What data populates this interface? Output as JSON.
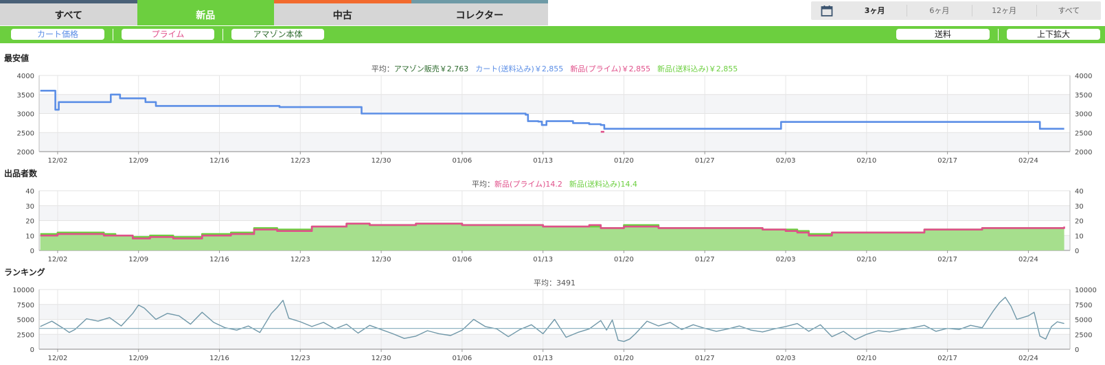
{
  "tabs": [
    {
      "label": "すべて",
      "active": false
    },
    {
      "label": "新品",
      "active": true
    },
    {
      "label": "中古",
      "active": false
    },
    {
      "label": "コレクター",
      "active": false
    }
  ],
  "range": {
    "icon": "calendar-icon",
    "options": [
      "3ヶ月",
      "6ヶ月",
      "12ヶ月",
      "すべて"
    ],
    "selected": "3ヶ月"
  },
  "filters": {
    "cart": "カート価格",
    "prime": "プライム",
    "amazon": "アマゾン本体",
    "shipping": "送料",
    "zoom": "上下拡大"
  },
  "colors": {
    "green": "#6ccf3f",
    "cart": "#5b8ee6",
    "prime": "#e0508a",
    "amazon": "#2e6b2e",
    "newship": "#6ccf3f",
    "rank": "#6f97a8"
  },
  "chart_data": [
    {
      "type": "line",
      "title": "最安値",
      "avg_label": "平均：",
      "legend": [
        {
          "text": "アマゾン販売￥2,763",
          "color": "#2e6b2e"
        },
        {
          "text": "カート(送料込み)￥2,855",
          "color": "#5b8ee6"
        },
        {
          "text": "新品(プライム)￥2,855",
          "color": "#e0508a"
        },
        {
          "text": "新品(送料込み)￥2,855",
          "color": "#6ccf3f"
        }
      ],
      "x_ticks": [
        "12/02",
        "12/09",
        "12/16",
        "12/23",
        "12/30",
        "01/06",
        "01/13",
        "01/20",
        "01/27",
        "02/03",
        "02/10",
        "02/17",
        "02/24"
      ],
      "xlim": [
        -1.6,
        87.6
      ],
      "ylim": [
        2000,
        4000
      ],
      "y_ticks": [
        "2000",
        "2500",
        "3000",
        "3500",
        "4000"
      ],
      "series": [
        {
          "name": "カート(送料込み)",
          "color": "#5b8ee6",
          "points": [
            [
              -1.5,
              3600
            ],
            [
              -0.3,
              3600
            ],
            [
              -0.2,
              3100
            ],
            [
              0.1,
              3300
            ],
            [
              4.5,
              3300
            ],
            [
              4.6,
              3500
            ],
            [
              5.3,
              3500
            ],
            [
              5.4,
              3400
            ],
            [
              7.5,
              3400
            ],
            [
              7.6,
              3300
            ],
            [
              8.3,
              3300
            ],
            [
              8.5,
              3200
            ],
            [
              19.2,
              3170
            ],
            [
              26.2,
              3170
            ],
            [
              26.3,
              3000
            ],
            [
              33.5,
              3000
            ],
            [
              40.5,
              2970
            ],
            [
              40.7,
              2800
            ],
            [
              41.6,
              2790
            ],
            [
              41.9,
              2700
            ],
            [
              42.3,
              2800
            ],
            [
              44.4,
              2800
            ],
            [
              44.6,
              2750
            ],
            [
              46.0,
              2720
            ],
            [
              47.0,
              2700
            ],
            [
              47.3,
              2600
            ],
            [
              62.5,
              2600
            ],
            [
              62.6,
              2780
            ],
            [
              84.9,
              2780
            ],
            [
              85.0,
              2600
            ],
            [
              87.1,
              2600
            ]
          ]
        },
        {
          "name": "新品(プライム)",
          "color": "#e0508a",
          "points": [
            [
              47.0,
              2520
            ],
            [
              47.3,
              2520
            ]
          ]
        }
      ]
    },
    {
      "type": "area",
      "title": "出品者数",
      "avg_label": "平均：",
      "legend": [
        {
          "text": "新品(プライム)14.2",
          "color": "#e0508a"
        },
        {
          "text": "新品(送料込み)14.4",
          "color": "#6ccf3f"
        }
      ],
      "x_ticks": [
        "12/02",
        "12/09",
        "12/16",
        "12/23",
        "12/30",
        "01/06",
        "01/13",
        "01/20",
        "01/27",
        "02/03",
        "02/10",
        "02/17",
        "02/24"
      ],
      "xlim": [
        -1.6,
        87.6
      ],
      "ylim": [
        0,
        40
      ],
      "y_ticks": [
        "0",
        "10",
        "20",
        "30",
        "40"
      ],
      "series": [
        {
          "name": "新品(送料込み)",
          "color": "#6ccf3f",
          "points": [
            [
              -1.5,
              11
            ],
            [
              0,
              12
            ],
            [
              3,
              12
            ],
            [
              4,
              11
            ],
            [
              5,
              10
            ],
            [
              6.5,
              9
            ],
            [
              8,
              10
            ],
            [
              10,
              9
            ],
            [
              12.5,
              11
            ],
            [
              15,
              12
            ],
            [
              17,
              15
            ],
            [
              19,
              14
            ],
            [
              22,
              16
            ],
            [
              25,
              18
            ],
            [
              27,
              17
            ],
            [
              30,
              17
            ],
            [
              31,
              18
            ],
            [
              35,
              17
            ],
            [
              38,
              17
            ],
            [
              41,
              17
            ],
            [
              42,
              16
            ],
            [
              45,
              16
            ],
            [
              47,
              15
            ],
            [
              49,
              17
            ],
            [
              52,
              15
            ],
            [
              59,
              15
            ],
            [
              61,
              14
            ],
            [
              63,
              14
            ],
            [
              64,
              13
            ],
            [
              65,
              11
            ],
            [
              67,
              12
            ],
            [
              73,
              12
            ],
            [
              75,
              14
            ],
            [
              80,
              15
            ],
            [
              87.1,
              15
            ]
          ]
        },
        {
          "name": "新品(プライム)",
          "color": "#e0508a",
          "points": [
            [
              -1.5,
              10
            ],
            [
              0,
              11
            ],
            [
              3,
              11
            ],
            [
              4,
              10
            ],
            [
              5,
              10
            ],
            [
              6.5,
              8
            ],
            [
              8,
              9
            ],
            [
              10,
              8
            ],
            [
              12.5,
              10
            ],
            [
              15,
              11
            ],
            [
              17,
              14
            ],
            [
              19,
              13
            ],
            [
              22,
              16
            ],
            [
              25,
              18
            ],
            [
              27,
              17
            ],
            [
              30,
              17
            ],
            [
              31,
              18
            ],
            [
              35,
              17
            ],
            [
              38,
              17
            ],
            [
              41,
              17
            ],
            [
              42,
              16
            ],
            [
              45,
              16
            ],
            [
              46,
              17
            ],
            [
              47,
              15
            ],
            [
              49,
              16
            ],
            [
              52,
              15
            ],
            [
              59,
              15
            ],
            [
              61,
              14
            ],
            [
              63,
              13
            ],
            [
              64,
              12
            ],
            [
              65,
              10
            ],
            [
              67,
              12
            ],
            [
              73,
              12
            ],
            [
              75,
              14
            ],
            [
              80,
              15
            ],
            [
              87.1,
              16
            ]
          ]
        }
      ]
    },
    {
      "type": "line",
      "title": "ランキング",
      "avg_label": "平均：",
      "legend": [
        {
          "text": "3491",
          "color": "#555"
        }
      ],
      "x_ticks": [
        "12/02",
        "12/09",
        "12/16",
        "12/23",
        "12/30",
        "01/06",
        "01/13",
        "01/20",
        "01/27",
        "02/03",
        "02/10",
        "02/17",
        "02/24"
      ],
      "xlim": [
        -1.6,
        87.6
      ],
      "ylim": [
        0,
        10000
      ],
      "y_ticks": [
        "0",
        "2500",
        "5000",
        "7500",
        "10000"
      ],
      "average": 3491,
      "series": [
        {
          "name": "ランキング",
          "color": "#6f97a8",
          "points": [
            [
              -1.5,
              3800
            ],
            [
              -0.5,
              4700
            ],
            [
              0.5,
              3500
            ],
            [
              1,
              2800
            ],
            [
              1.5,
              3300
            ],
            [
              2.5,
              5100
            ],
            [
              3.5,
              4700
            ],
            [
              4.5,
              5300
            ],
            [
              5.5,
              3900
            ],
            [
              6.5,
              6000
            ],
            [
              7,
              7400
            ],
            [
              7.5,
              6900
            ],
            [
              8.5,
              5000
            ],
            [
              9.5,
              6000
            ],
            [
              10.5,
              5600
            ],
            [
              11.5,
              4200
            ],
            [
              12.5,
              6200
            ],
            [
              13.5,
              4500
            ],
            [
              14.5,
              3600
            ],
            [
              15.5,
              3200
            ],
            [
              16.5,
              3900
            ],
            [
              17.5,
              2800
            ],
            [
              18.5,
              6000
            ],
            [
              19,
              7000
            ],
            [
              19.5,
              8200
            ],
            [
              20,
              5200
            ],
            [
              21,
              4600
            ],
            [
              22,
              3800
            ],
            [
              23,
              4500
            ],
            [
              24,
              3400
            ],
            [
              25,
              4200
            ],
            [
              26,
              2700
            ],
            [
              27,
              4000
            ],
            [
              28,
              3300
            ],
            [
              29,
              2600
            ],
            [
              30,
              1800
            ],
            [
              31,
              2200
            ],
            [
              32,
              3100
            ],
            [
              33,
              2600
            ],
            [
              34,
              2300
            ],
            [
              35,
              3200
            ],
            [
              36,
              5000
            ],
            [
              37,
              3800
            ],
            [
              38,
              3400
            ],
            [
              39,
              2100
            ],
            [
              40,
              3300
            ],
            [
              41,
              4100
            ],
            [
              42,
              2600
            ],
            [
              43,
              5000
            ],
            [
              44,
              2000
            ],
            [
              45,
              2800
            ],
            [
              46,
              3400
            ],
            [
              47,
              4800
            ],
            [
              47.5,
              3200
            ],
            [
              48,
              4900
            ],
            [
              48.5,
              1500
            ],
            [
              49,
              1300
            ],
            [
              49.5,
              1700
            ],
            [
              50,
              2600
            ],
            [
              51,
              4700
            ],
            [
              52,
              3900
            ],
            [
              53,
              4500
            ],
            [
              54,
              3300
            ],
            [
              55,
              4100
            ],
            [
              56,
              3500
            ],
            [
              57,
              3000
            ],
            [
              58,
              3400
            ],
            [
              59,
              3900
            ],
            [
              60,
              3200
            ],
            [
              61,
              2900
            ],
            [
              62,
              3400
            ],
            [
              63,
              3800
            ],
            [
              64,
              4300
            ],
            [
              65,
              3000
            ],
            [
              66,
              4100
            ],
            [
              67,
              2100
            ],
            [
              68,
              3000
            ],
            [
              69,
              1600
            ],
            [
              70,
              2500
            ],
            [
              71,
              3100
            ],
            [
              72,
              2900
            ],
            [
              73,
              3300
            ],
            [
              74,
              3600
            ],
            [
              75,
              4000
            ],
            [
              76,
              3000
            ],
            [
              77,
              3500
            ],
            [
              78,
              3300
            ],
            [
              79,
              4000
            ],
            [
              80,
              3600
            ],
            [
              81,
              6500
            ],
            [
              81.5,
              7800
            ],
            [
              82,
              8700
            ],
            [
              82.5,
              7200
            ],
            [
              83,
              5000
            ],
            [
              84,
              5600
            ],
            [
              84.5,
              6200
            ],
            [
              85,
              2200
            ],
            [
              85.5,
              1700
            ],
            [
              86,
              3800
            ],
            [
              86.5,
              4600
            ],
            [
              87.1,
              4300
            ]
          ]
        }
      ]
    }
  ]
}
